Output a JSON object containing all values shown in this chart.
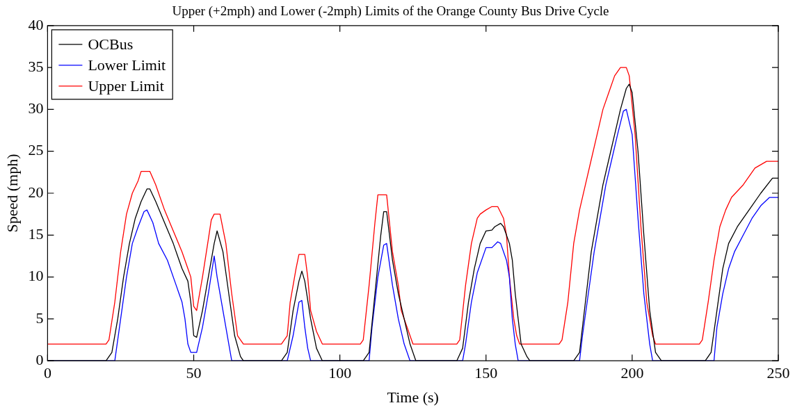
{
  "chart_data": {
    "type": "line",
    "title": "Upper (+2mph) and Lower (-2mph) Limits of the Orange County Bus Drive Cycle",
    "xlabel": "Time (s)",
    "ylabel": "Speed (mph)",
    "xlim": [
      0,
      250
    ],
    "xticks": [
      0,
      50,
      100,
      150,
      200,
      250
    ],
    "ylim": [
      0,
      40
    ],
    "yticks": [
      0,
      5,
      10,
      15,
      20,
      25,
      30,
      35,
      40
    ],
    "grid": false,
    "legend": "top left",
    "marker": "none",
    "line_style": "solid",
    "series": [
      {
        "name": "OCBus",
        "color": "#000000",
        "x": [
          0,
          20,
          22,
          24,
          26,
          28,
          30,
          32,
          34,
          35,
          37,
          40,
          43,
          46,
          48,
          49,
          50,
          51,
          53,
          55,
          57,
          58,
          60,
          62,
          64,
          66,
          67,
          80,
          82,
          84,
          86,
          87,
          88,
          90,
          92,
          94,
          108,
          110,
          112,
          114,
          115,
          116,
          118,
          120,
          122,
          124,
          126,
          140,
          142,
          144,
          146,
          148,
          150,
          152,
          153,
          155,
          156,
          158,
          159,
          160,
          162,
          164,
          165,
          180,
          182,
          184,
          186,
          188,
          190,
          192,
          194,
          196,
          198,
          199,
          200,
          202,
          204,
          206,
          208,
          210,
          225,
          227,
          229,
          231,
          233,
          236,
          240,
          244,
          248,
          250
        ],
        "values": [
          0,
          0,
          1,
          5,
          10,
          14,
          17,
          19,
          20.5,
          20.5,
          19,
          16.5,
          14,
          11,
          9.5,
          7,
          3,
          2.8,
          6,
          10,
          14,
          15.5,
          13,
          8,
          3,
          0.5,
          0,
          0,
          1,
          6,
          9.5,
          10.7,
          9.5,
          5,
          1.5,
          0,
          0,
          1,
          8,
          15,
          17.8,
          17.8,
          12,
          8,
          5,
          2,
          0,
          0,
          1.5,
          7,
          11,
          14,
          15.5,
          15.6,
          16,
          16.4,
          16,
          14,
          12,
          8,
          2,
          0.5,
          0,
          0,
          1,
          7,
          13,
          17,
          21,
          24,
          27,
          30,
          32.5,
          33,
          32,
          25,
          15,
          6,
          1,
          0,
          0,
          1,
          6,
          11,
          14,
          16,
          18,
          20,
          21.8,
          21.8
        ]
      },
      {
        "name": "Lower Limit",
        "color": "#0000ff",
        "x": [
          0,
          23,
          25,
          27,
          29,
          31,
          33,
          34,
          36,
          38,
          41,
          44,
          46,
          47,
          48,
          49,
          51,
          53,
          55,
          57,
          58,
          60,
          62,
          63,
          82,
          84,
          86,
          87,
          88,
          89,
          90,
          110,
          111,
          113,
          115,
          116,
          118,
          120,
          122,
          124,
          142,
          143,
          145,
          147,
          150,
          152,
          154,
          155,
          157,
          158,
          159,
          160,
          161,
          182,
          183,
          185,
          187,
          189,
          191,
          193,
          195,
          197,
          198,
          200,
          202,
          204,
          206,
          207,
          228,
          229,
          231,
          233,
          235,
          238,
          241,
          244,
          247,
          250
        ],
        "values": [
          0,
          0,
          5,
          10,
          14,
          16,
          17.8,
          18,
          16.5,
          14,
          12,
          9,
          7,
          5,
          2,
          1,
          1,
          4,
          8,
          12.5,
          10,
          6,
          2,
          0,
          0,
          3,
          7,
          7.2,
          4,
          1.5,
          0,
          0,
          4,
          10,
          13.8,
          14,
          9,
          5,
          2,
          0,
          0,
          2,
          7,
          10.5,
          13.5,
          13.5,
          14.2,
          14,
          12,
          10,
          5,
          2,
          0,
          0,
          3,
          8,
          13,
          17,
          21,
          24,
          27,
          29.8,
          30,
          27,
          17,
          8,
          2,
          0,
          0,
          4,
          8,
          11,
          13,
          15,
          17,
          18.5,
          19.5,
          19.5
        ]
      },
      {
        "name": "Upper Limit",
        "color": "#ff0000",
        "x": [
          0,
          20,
          21,
          23,
          25,
          27,
          29,
          31,
          32,
          35,
          37,
          40,
          43,
          46,
          48,
          49,
          50,
          51,
          53,
          55,
          56,
          57,
          59,
          61,
          63,
          65,
          66,
          67,
          80,
          82,
          83,
          85,
          86,
          88,
          89,
          90,
          92,
          94,
          107,
          108,
          110,
          112,
          113,
          116,
          118,
          120,
          121,
          123,
          125,
          140,
          141,
          143,
          145,
          147,
          148,
          150,
          152,
          154,
          156,
          157,
          158,
          159.5,
          160.5,
          161.5,
          175,
          176,
          178,
          180,
          182,
          184,
          186,
          188,
          190,
          192,
          194,
          196,
          198,
          199,
          201,
          203,
          205,
          207,
          208,
          223,
          224,
          226,
          228,
          230,
          232,
          234,
          238,
          242,
          246,
          250
        ],
        "values": [
          2,
          2,
          2.5,
          7,
          13,
          17.5,
          20,
          21.5,
          22.6,
          22.6,
          21,
          18,
          15.5,
          13,
          11,
          10,
          6.5,
          6,
          10,
          14.5,
          16.8,
          17.5,
          17.5,
          14,
          8,
          3,
          2.5,
          2,
          2,
          3,
          7,
          11,
          12.7,
          12.7,
          10,
          6,
          3.5,
          2,
          2,
          2.5,
          9,
          16.5,
          19.8,
          19.8,
          13,
          9,
          6,
          4,
          2,
          2,
          2.5,
          9,
          14,
          17,
          17.5,
          18,
          18.4,
          18.4,
          17,
          15,
          10,
          5,
          3,
          2,
          2,
          2.5,
          7,
          14,
          18,
          21,
          24,
          27,
          30,
          32,
          34,
          35,
          35,
          34,
          27,
          16,
          7,
          3,
          2,
          2,
          2.5,
          7,
          12,
          16,
          18,
          19.5,
          21,
          23,
          23.8,
          23.8
        ]
      }
    ]
  }
}
